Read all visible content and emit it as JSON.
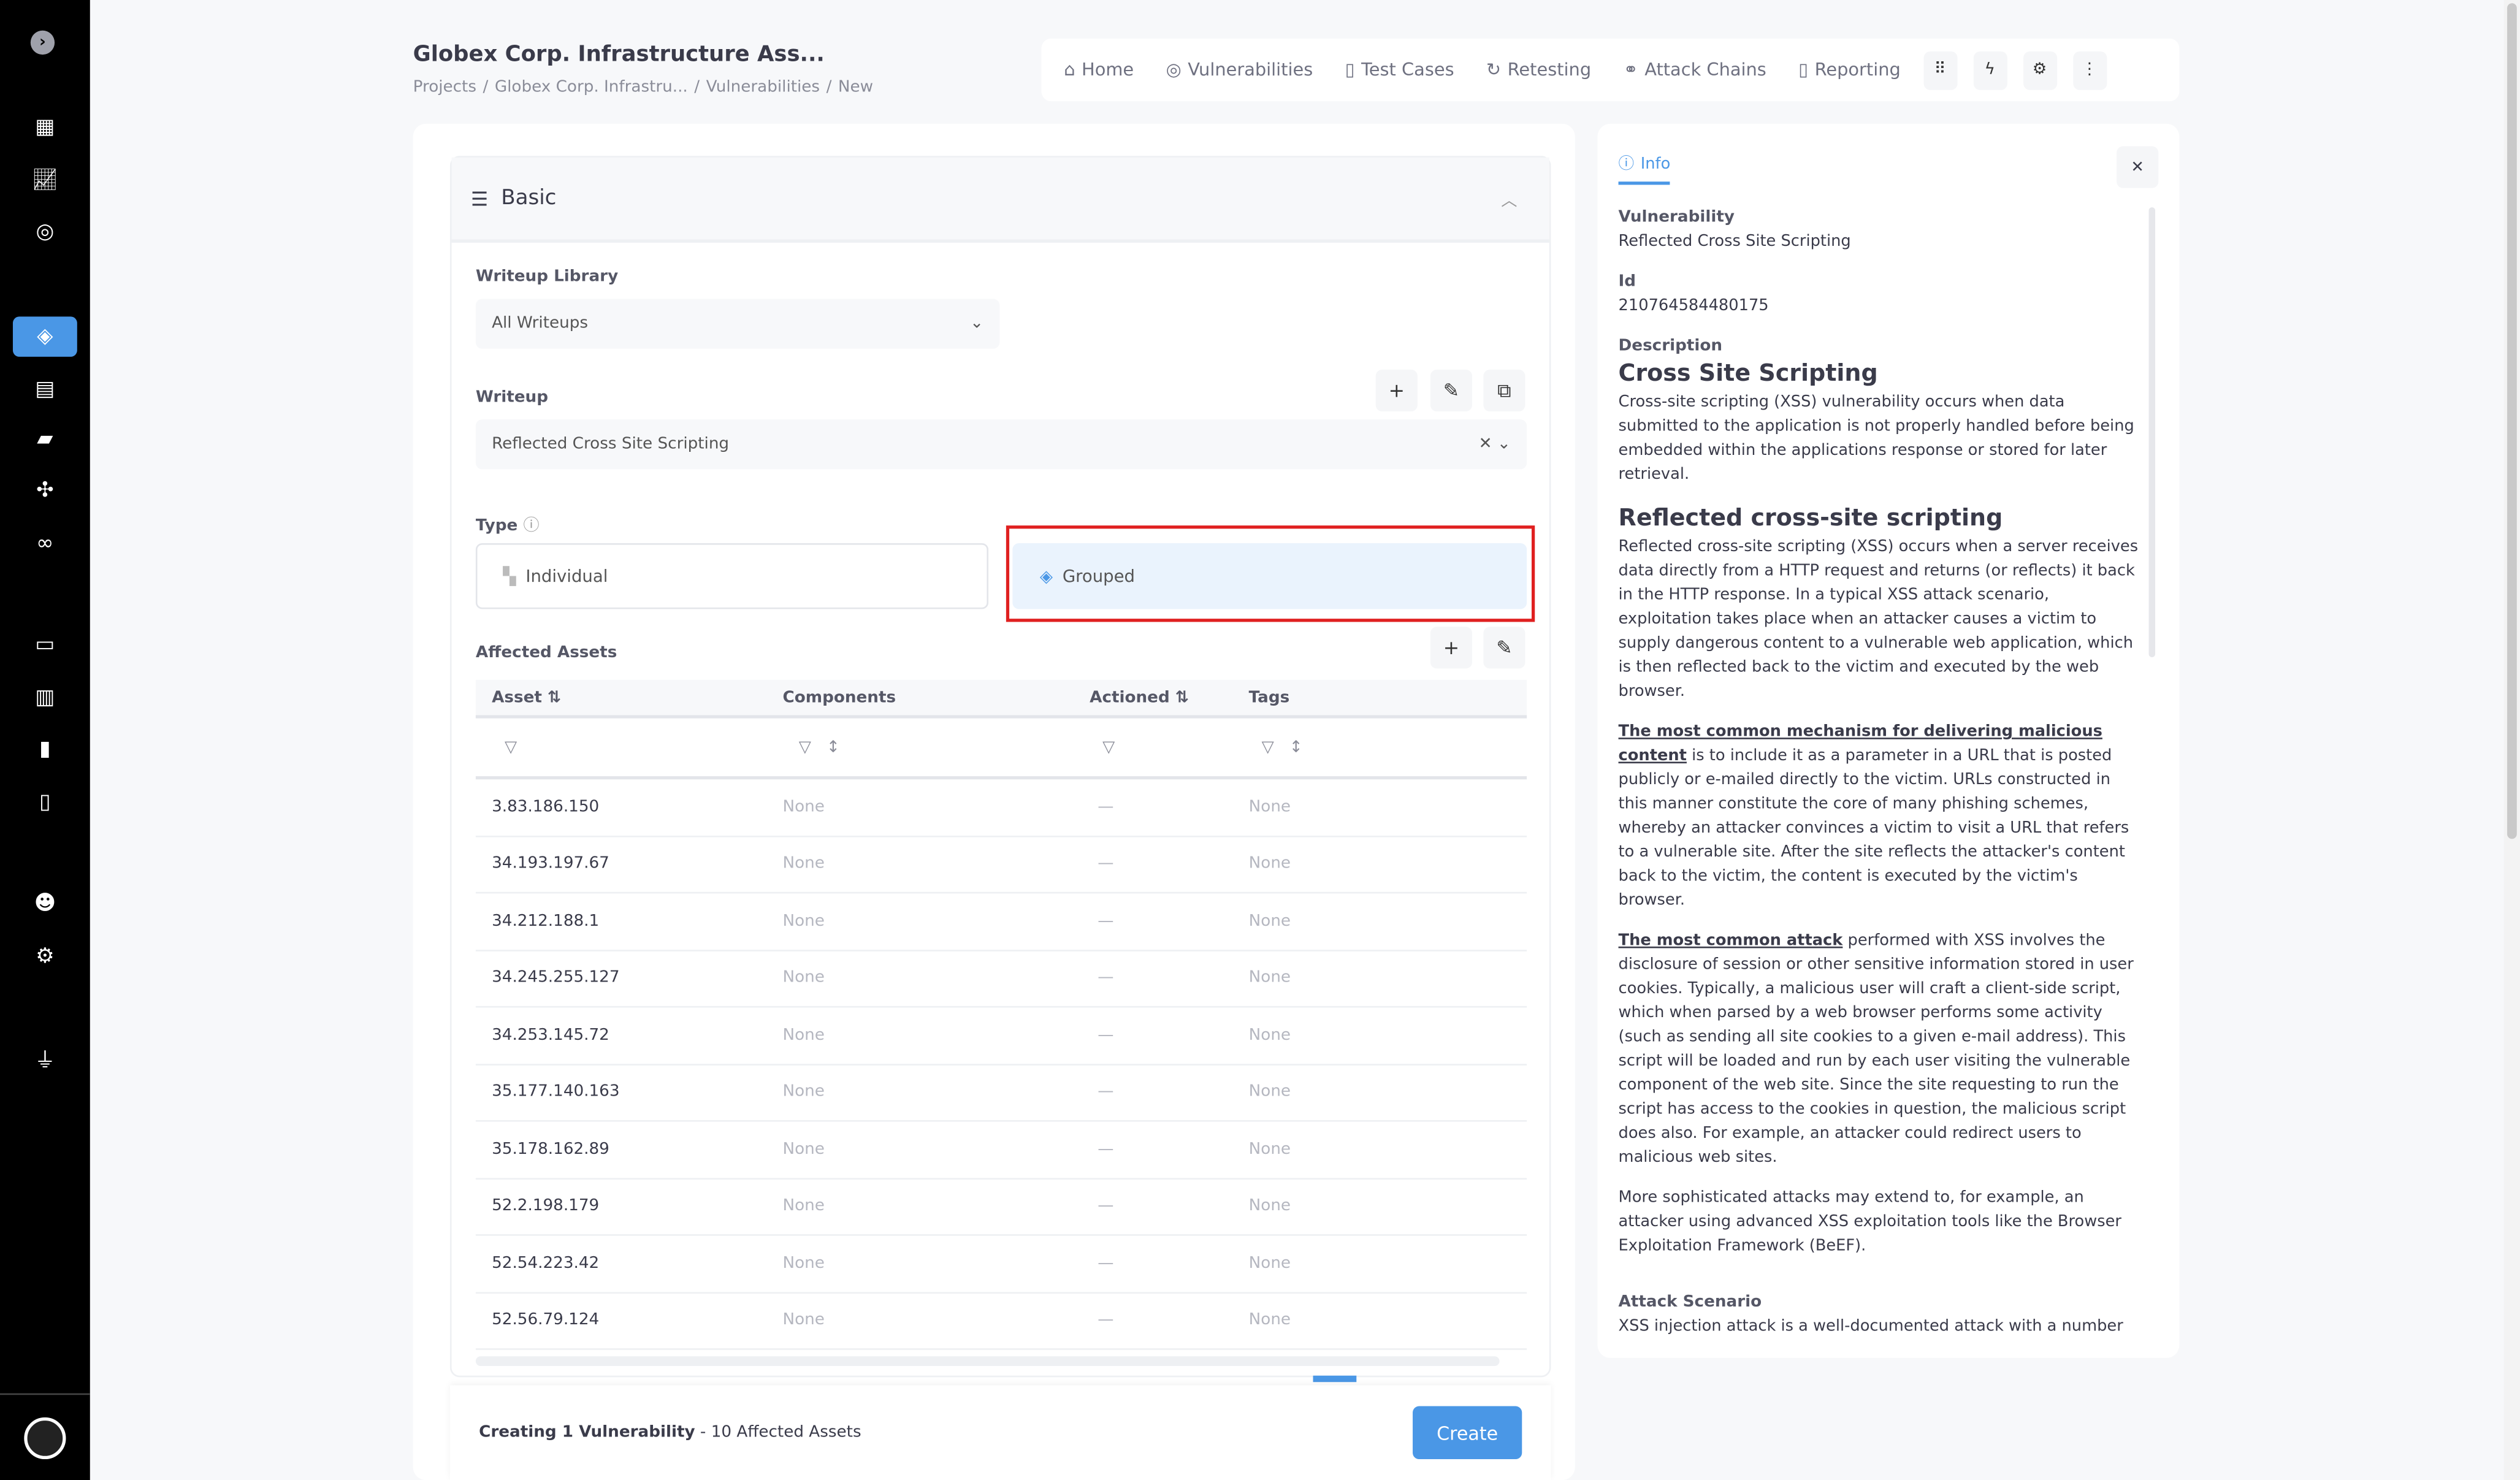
{
  "colors": {
    "accent": "#4a97e6",
    "sidebar": "#000000",
    "highlight": "#e02020"
  },
  "sidebar": {
    "items": [
      "chevron-right",
      "dashboard",
      "analytics",
      "target",
      "layers",
      "calendar",
      "folder",
      "components",
      "link",
      "monitor",
      "library",
      "book",
      "document",
      "users",
      "settings",
      "plug"
    ],
    "active": "layers"
  },
  "header": {
    "title": "Globex Corp. Infrastructure Ass...",
    "breadcrumb": [
      "Projects",
      "/",
      "Globex Corp. Infrastru...",
      "/",
      "Vulnerabilities",
      "/",
      "New"
    ]
  },
  "topnav": {
    "items": [
      {
        "label": "Home",
        "icon": "⌂"
      },
      {
        "label": "Vulnerabilities",
        "icon": "◎"
      },
      {
        "label": "Test Cases",
        "icon": "▯"
      },
      {
        "label": "Retesting",
        "icon": "↻"
      },
      {
        "label": "Attack Chains",
        "icon": "⚭"
      },
      {
        "label": "Reporting",
        "icon": "▯"
      }
    ]
  },
  "form": {
    "section": "Basic",
    "library_label": "Writeup Library",
    "library_value": "All Writeups",
    "writeup_label": "Writeup",
    "writeup_value": "Reflected Cross Site Scripting",
    "type_label": "Type",
    "type_individual": "Individual",
    "type_grouped": "Grouped",
    "type_selected": "Grouped",
    "assets_label": "Affected Assets",
    "columns": [
      "Asset",
      "Components",
      "Actioned",
      "Tags"
    ],
    "rows": [
      [
        "3.83.186.150",
        "None",
        "—",
        "None"
      ],
      [
        "34.193.197.67",
        "None",
        "—",
        "None"
      ],
      [
        "34.212.188.1",
        "None",
        "—",
        "None"
      ],
      [
        "34.245.255.127",
        "None",
        "—",
        "None"
      ],
      [
        "34.253.145.72",
        "None",
        "—",
        "None"
      ],
      [
        "35.177.140.163",
        "None",
        "—",
        "None"
      ],
      [
        "35.178.162.89",
        "None",
        "—",
        "None"
      ],
      [
        "52.2.198.179",
        "None",
        "—",
        "None"
      ],
      [
        "52.54.223.42",
        "None",
        "—",
        "None"
      ],
      [
        "52.56.79.124",
        "None",
        "—",
        "None"
      ]
    ]
  },
  "footer": {
    "status_bold": "Creating 1 Vulnerability",
    "status_rest": " - 10 Affected Assets",
    "create": "Create"
  },
  "info": {
    "tab": "Info",
    "vuln_label": "Vulnerability",
    "vuln_value": "Reflected Cross Site Scripting",
    "id_label": "Id",
    "id_value": "210764584480175",
    "desc_label": "Description",
    "h1": "Cross Site Scripting",
    "p1": "Cross-site scripting (XSS) vulnerability occurs when data submitted to the application is not properly handled before being embedded within the applications response or stored for later retrieval.",
    "h2": "Reflected cross-site scripting",
    "p2": "Reflected cross-site scripting (XSS) occurs when a server receives data directly from a HTTP request and returns (or reflects) it back in the HTTP response. In a typical XSS attack scenario, exploitation takes place when an attacker causes a victim to supply dangerous content to a vulnerable web application, which is then reflected back to the victim and executed by the web browser.",
    "p3_link": "The most common mechanism for delivering malicious content",
    "p3": " is to include it as a parameter in a URL that is posted publicly or e-mailed directly to the victim. URLs constructed in this manner constitute the core of many phishing schemes, whereby an attacker convinces a victim to visit a URL that refers to a vulnerable site. After the site reflects the attacker's content back to the victim, the content is executed by the victim's browser.",
    "p4_link": "The most common attack",
    "p4": " performed with XSS involves the disclosure of session or other sensitive information stored in user cookies. Typically, a malicious user will craft a client-side script, which when parsed by a web browser performs some activity (such as sending all site cookies to a given e-mail address). This script will be loaded and run by each user visiting the vulnerable component of the web site. Since the site requesting to run the script has access to the cookies in question, the malicious script does also. For example, an attacker could redirect users to malicious web sites.",
    "p5": "More sophisticated attacks may extend to, for example, an attacker using advanced XSS exploitation tools like the Browser Exploitation Framework (BeEF).",
    "scenario_label": "Attack Scenario",
    "scenario": "XSS injection attack is a well-documented attack with a number"
  }
}
